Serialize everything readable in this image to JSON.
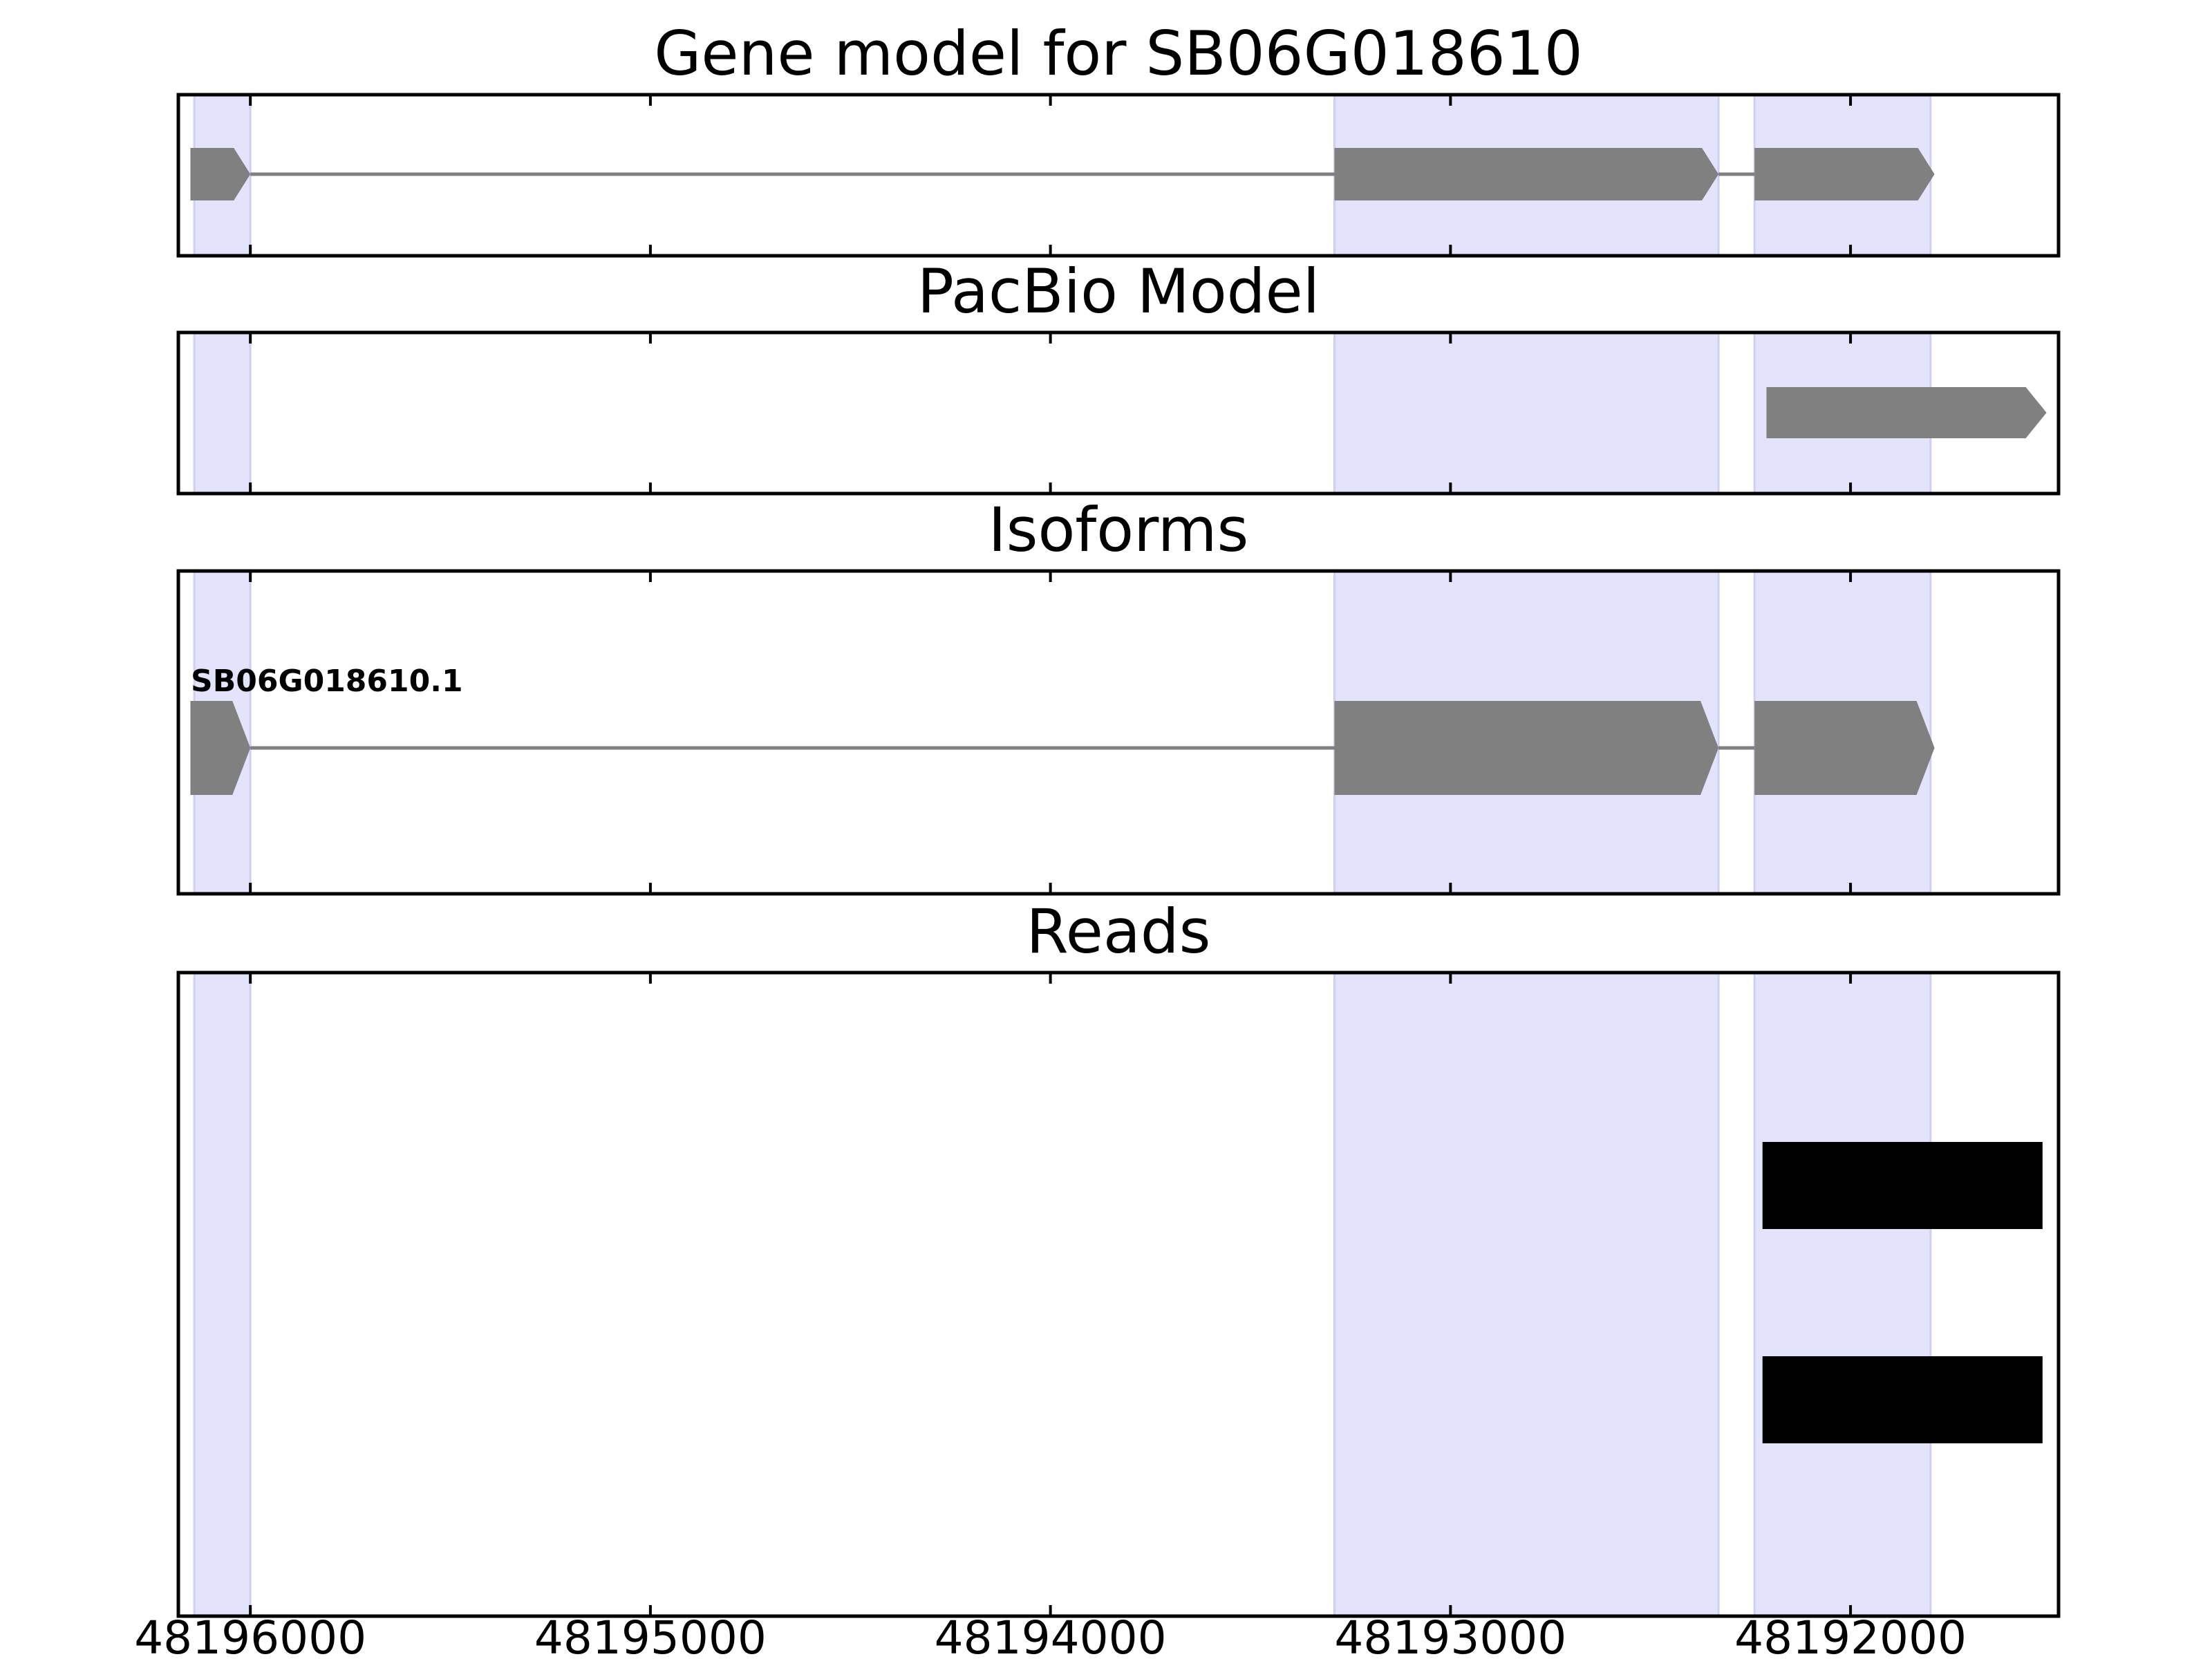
{
  "chart_data": {
    "type": "gene-model",
    "x_axis": {
      "range": [
        48196180,
        48191480
      ],
      "reversed": true,
      "ticks": [
        48196000,
        48195000,
        48194000,
        48193000,
        48192000
      ],
      "tick_labels": [
        "48196000",
        "48195000",
        "48194000",
        "48193000",
        "48192000"
      ]
    },
    "colors": {
      "highlight": "#e3e3fc",
      "highlight_edge": "#cfcff2",
      "feature": "#808080",
      "read": "#000000",
      "intron": "#808080"
    },
    "exon_highlights": [
      [
        48196140,
        48196000
      ],
      [
        48193290,
        48192330
      ],
      [
        48192240,
        48191800
      ]
    ],
    "panels": [
      {
        "title": "Gene model for SB06G018610",
        "features": [
          {
            "kind": "gene",
            "strand": "-",
            "exons": [
              [
                48196150,
                48196000
              ],
              [
                48193290,
                48192330
              ],
              [
                48192240,
                48191790
              ]
            ]
          }
        ]
      },
      {
        "title": "PacBio Model",
        "features": [
          {
            "kind": "gene",
            "strand": "-",
            "exons": [
              [
                48192210,
                48191510
              ]
            ]
          }
        ]
      },
      {
        "title": "Isoforms",
        "features": [
          {
            "kind": "gene",
            "strand": "-",
            "name": "SB06G018610.1",
            "exons": [
              [
                48196150,
                48196000
              ],
              [
                48193290,
                48192330
              ],
              [
                48192240,
                48191790
              ]
            ]
          }
        ]
      },
      {
        "title": "Reads",
        "features": [
          {
            "kind": "read",
            "exons": [
              [
                48192220,
                48191520
              ]
            ]
          },
          {
            "kind": "read",
            "exons": [
              [
                48192220,
                48191520
              ]
            ]
          }
        ]
      }
    ]
  }
}
